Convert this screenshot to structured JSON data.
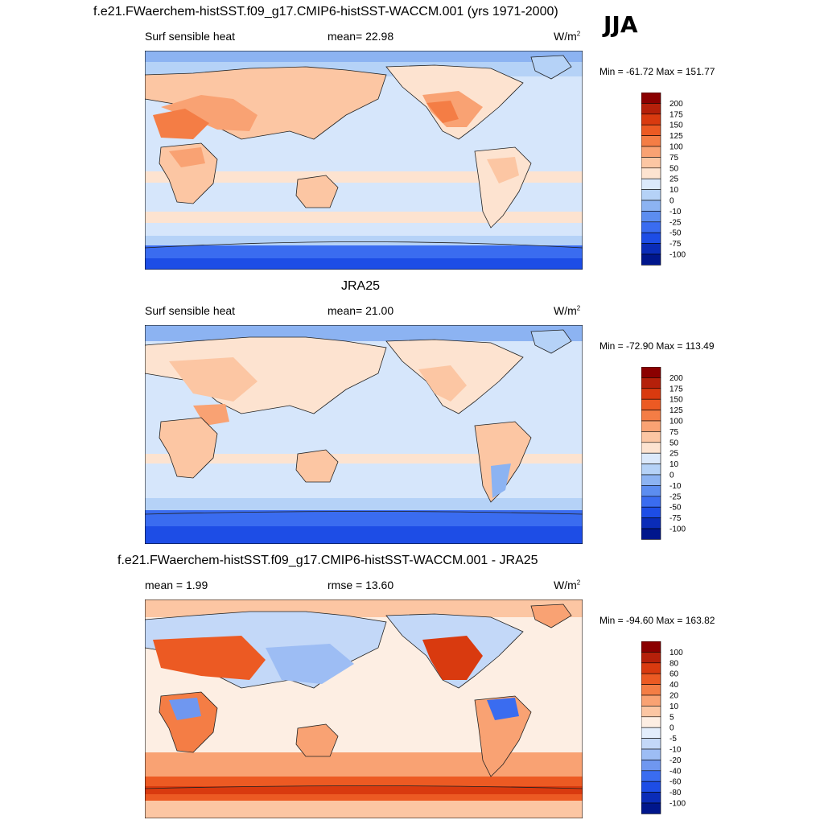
{
  "season": "JJA",
  "chart_data": [
    {
      "type": "heatmap",
      "title": "f.e21.FWaerchem-histSST.f09_g17.CMIP6-histSST-WACCM.001 (yrs 1971-2000)",
      "left_label": "Surf sensible heat",
      "center_label": "mean=  22.98",
      "units": "W/m",
      "units_exp": "2",
      "minmax": "Min = -61.72 Max = 151.77",
      "colorbar": {
        "labels": [
          "200",
          "175",
          "150",
          "125",
          "100",
          "75",
          "50",
          "25",
          "10",
          "0",
          "-10",
          "-25",
          "-50",
          "-75",
          "-100"
        ],
        "colors": [
          "#8b0000",
          "#b5200a",
          "#d93a0f",
          "#ec5a23",
          "#f47d45",
          "#f9a273",
          "#fcc6a3",
          "#fde3d0",
          "#dbe9fb",
          "#b5d2f7",
          "#8cb3f2",
          "#5c8df0",
          "#3a6cf0",
          "#1d4de6",
          "#0a2cb8",
          "#00168c"
        ]
      }
    },
    {
      "type": "heatmap",
      "title": "JRA25",
      "left_label": "Surf sensible heat",
      "center_label": "mean=  21.00",
      "units": "W/m",
      "units_exp": "2",
      "minmax": "Min = -72.90 Max = 113.49",
      "colorbar": {
        "labels": [
          "200",
          "175",
          "150",
          "125",
          "100",
          "75",
          "50",
          "25",
          "10",
          "0",
          "-10",
          "-25",
          "-50",
          "-75",
          "-100"
        ],
        "colors": [
          "#8b0000",
          "#b5200a",
          "#d93a0f",
          "#ec5a23",
          "#f47d45",
          "#f9a273",
          "#fcc6a3",
          "#fde3d0",
          "#dbe9fb",
          "#b5d2f7",
          "#8cb3f2",
          "#5c8df0",
          "#3a6cf0",
          "#1d4de6",
          "#0a2cb8",
          "#00168c"
        ]
      }
    },
    {
      "type": "heatmap",
      "title": "f.e21.FWaerchem-histSST.f09_g17.CMIP6-histSST-WACCM.001 - JRA25",
      "left_label": "mean =   1.99",
      "center_label": "rmse =  13.60",
      "units": "W/m",
      "units_exp": "2",
      "minmax": "Min = -94.60 Max = 163.82",
      "colorbar": {
        "labels": [
          "100",
          "80",
          "60",
          "40",
          "20",
          "10",
          "5",
          "0",
          "-5",
          "-10",
          "-20",
          "-40",
          "-60",
          "-80",
          "-100"
        ],
        "colors": [
          "#8b0000",
          "#b5200a",
          "#d93a0f",
          "#ec5a23",
          "#f47d45",
          "#f9a273",
          "#fcc6a3",
          "#fdeee3",
          "#e3eefc",
          "#c3d8f8",
          "#9dbdf4",
          "#6f97f0",
          "#3a6cf0",
          "#1d4de6",
          "#0a2cb8",
          "#00168c"
        ]
      }
    }
  ]
}
